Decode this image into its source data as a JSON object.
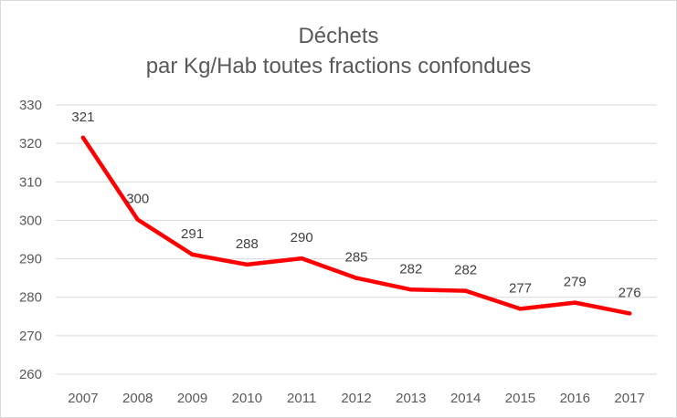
{
  "chart_data": {
    "type": "line",
    "title": [
      "Déchets",
      "par Kg/Hab toutes fractions confondues"
    ],
    "categories": [
      "2007",
      "2008",
      "2009",
      "2010",
      "2011",
      "2012",
      "2013",
      "2014",
      "2015",
      "2016",
      "2017"
    ],
    "series": [
      {
        "values": [
          321.5,
          300.2,
          291.1,
          288.5,
          290.1,
          285.0,
          282.0,
          281.7,
          277.0,
          278.6,
          275.8
        ],
        "labels": [
          "321",
          "300",
          "291",
          "288",
          "290",
          "285",
          "282",
          "282",
          "277",
          "279",
          "276"
        ],
        "color": "#ff0000"
      }
    ],
    "ylim": [
      260,
      330
    ],
    "yticks": [
      "260",
      "270",
      "280",
      "290",
      "300",
      "310",
      "320",
      "330"
    ],
    "grid": true,
    "legend": "none",
    "gridline_color": "#d9d9d9",
    "text_color": "#595959"
  }
}
